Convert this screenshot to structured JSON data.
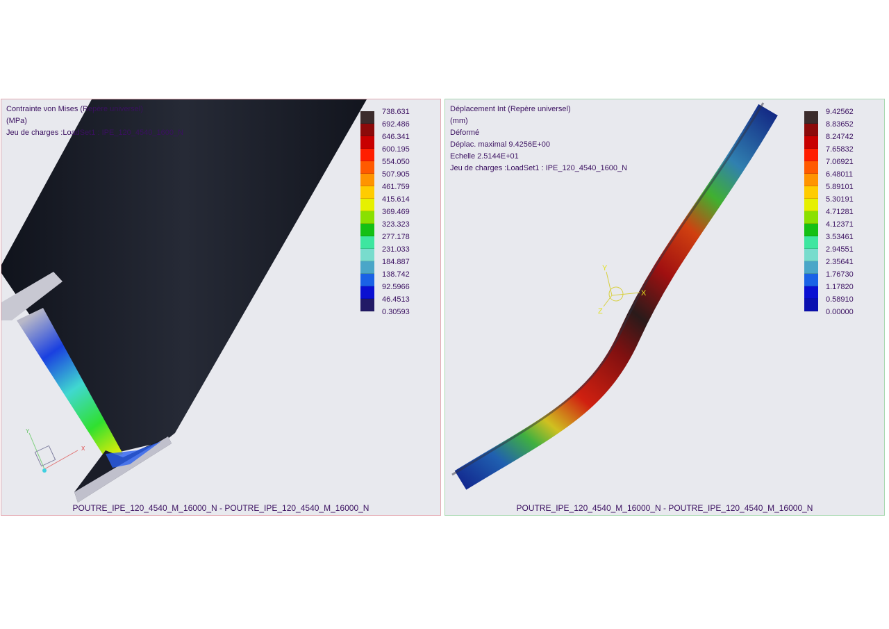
{
  "left_view": {
    "info": [
      "Contrainte von Mises (Repère universel)",
      "(MPa)",
      "Jeu de charges :LoadSet1 :  IPE_120_4540_1600_N"
    ],
    "legend_labels": [
      "738.631",
      "692.486",
      "646.341",
      "600.195",
      "554.050",
      "507.905",
      "461.759",
      "415.614",
      "369.469",
      "323.323",
      "277.178",
      "231.033",
      "184.887",
      "138.742",
      "92.5966",
      "46.4513",
      "0.30593"
    ],
    "legend_colors": [
      "#3b2c2c",
      "#8c0a0a",
      "#c80000",
      "#ff1e00",
      "#ff5a00",
      "#ff9400",
      "#ffcc00",
      "#e6f000",
      "#8ae000",
      "#14c014",
      "#3ee6a0",
      "#78dccd",
      "#4aa6c8",
      "#1a62e6",
      "#0a10d2",
      "#221a66"
    ],
    "axis_labels": {
      "x": "X",
      "y": "Y"
    },
    "footer": "POUTRE_IPE_120_4540_M_16000_N - POUTRE_IPE_120_4540_M_16000_N"
  },
  "right_view": {
    "info": [
      "Déplacement Int (Repère universel)",
      "(mm)",
      "Déformé",
      "Déplac. maximal  9.4256E+00",
      "Echelle  2.5144E+01",
      "Jeu de charges :LoadSet1 :  IPE_120_4540_1600_N"
    ],
    "legend_labels": [
      "9.42562",
      "8.83652",
      "8.24742",
      "7.65832",
      "7.06921",
      "6.48011",
      "5.89101",
      "5.30191",
      "4.71281",
      "4.12371",
      "3.53461",
      "2.94551",
      "2.35641",
      "1.76730",
      "1.17820",
      "0.58910",
      "0.00000"
    ],
    "legend_colors": [
      "#3b2c2c",
      "#8c0a0a",
      "#c80000",
      "#ff1e00",
      "#ff5a00",
      "#ff9400",
      "#ffcc00",
      "#e6f000",
      "#8ae000",
      "#14c014",
      "#3ee6a0",
      "#78dccd",
      "#4aa6c8",
      "#1a62e6",
      "#0a10d2",
      "#0a10b0"
    ],
    "axis_labels": {
      "x": "X",
      "y": "Y",
      "z": "Z"
    },
    "footer": "POUTRE_IPE_120_4540_M_16000_N - POUTRE_IPE_120_4540_M_16000_N"
  }
}
